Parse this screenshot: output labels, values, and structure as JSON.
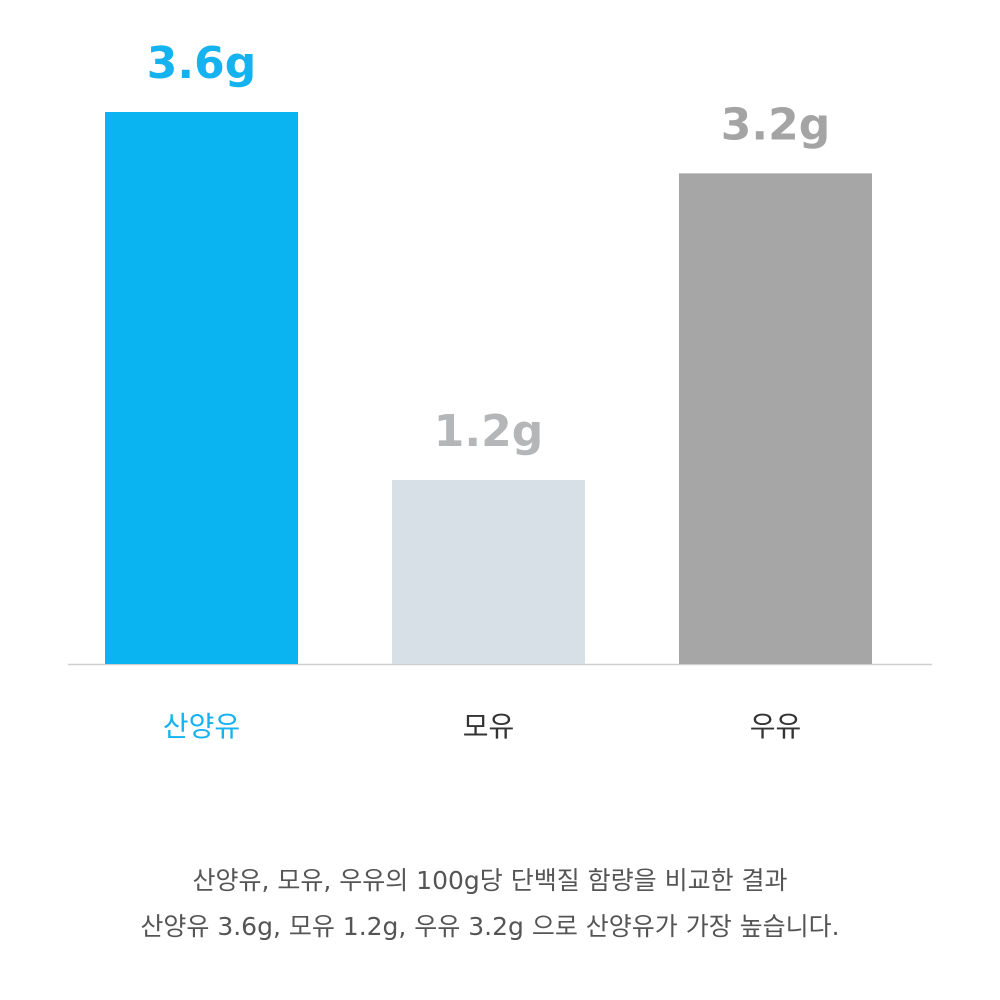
{
  "chart_data": {
    "type": "bar",
    "categories": [
      "산양유",
      "모유",
      "우유"
    ],
    "values": [
      3.6,
      1.2,
      3.2
    ],
    "value_labels": [
      "3.6g",
      "1.2g",
      "3.2g"
    ],
    "colors": [
      "#0ab4f0",
      "#d6e0e6",
      "#a6a6a6"
    ],
    "value_label_colors": [
      "#14b2ee",
      "#b4b6b7",
      "#a4a4a4"
    ],
    "category_colors": [
      "#14b2ee",
      "#333333",
      "#333333"
    ],
    "caption": [
      "산양유, 모유, 우유의 100g당 단백질 함량을 비교한 결과",
      "산양유 3.6g, 모유 1.2g, 우유 3.2g 으로 산양유가 가장 높습니다."
    ]
  }
}
